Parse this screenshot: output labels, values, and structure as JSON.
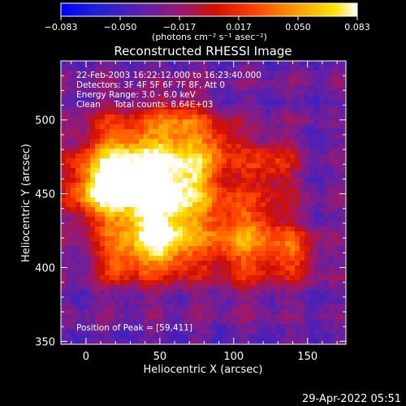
{
  "colorbar": {
    "tick_labels": [
      "−0.083",
      "−0.050",
      "−0.017",
      "0.017",
      "0.050",
      "0.083"
    ],
    "unit_label": "(photons cm⁻² s⁻¹ asec⁻²)",
    "stops": [
      {
        "v": 0.0,
        "c": "#0000ff"
      },
      {
        "v": 0.12,
        "c": "#2020d8"
      },
      {
        "v": 0.28,
        "c": "#6020a8"
      },
      {
        "v": 0.42,
        "c": "#a01868"
      },
      {
        "v": 0.52,
        "c": "#d01000"
      },
      {
        "v": 0.65,
        "c": "#ff4000"
      },
      {
        "v": 0.8,
        "c": "#ffa000"
      },
      {
        "v": 0.92,
        "c": "#ffe000"
      },
      {
        "v": 1.0,
        "c": "#ffffff"
      }
    ]
  },
  "title": "Reconstructed RHESSI Image",
  "info": {
    "time_range": "22-Feb-2003 16:22:12.000 to 16:23:40.000",
    "detectors": "Detectors: 3F 4F 5F 6F 7F 8F, Att 0",
    "energy": "Energy Range: 3.0 - 6.0 keV",
    "clean": "Clean     Total counts: 8.64E+03"
  },
  "peak": "Position of Peak = [59,411]",
  "axes": {
    "xlabel": "Heliocentric X (arcsec)",
    "ylabel": "Heliocentric Y (arcsec)",
    "x_ticks": [
      "0",
      "50",
      "100",
      "150"
    ],
    "y_ticks": [
      "350",
      "400",
      "450",
      "500"
    ],
    "xlim": [
      -17,
      176
    ],
    "ylim": [
      348,
      540
    ]
  },
  "timestamp": "29-Apr-2022 05:51"
}
